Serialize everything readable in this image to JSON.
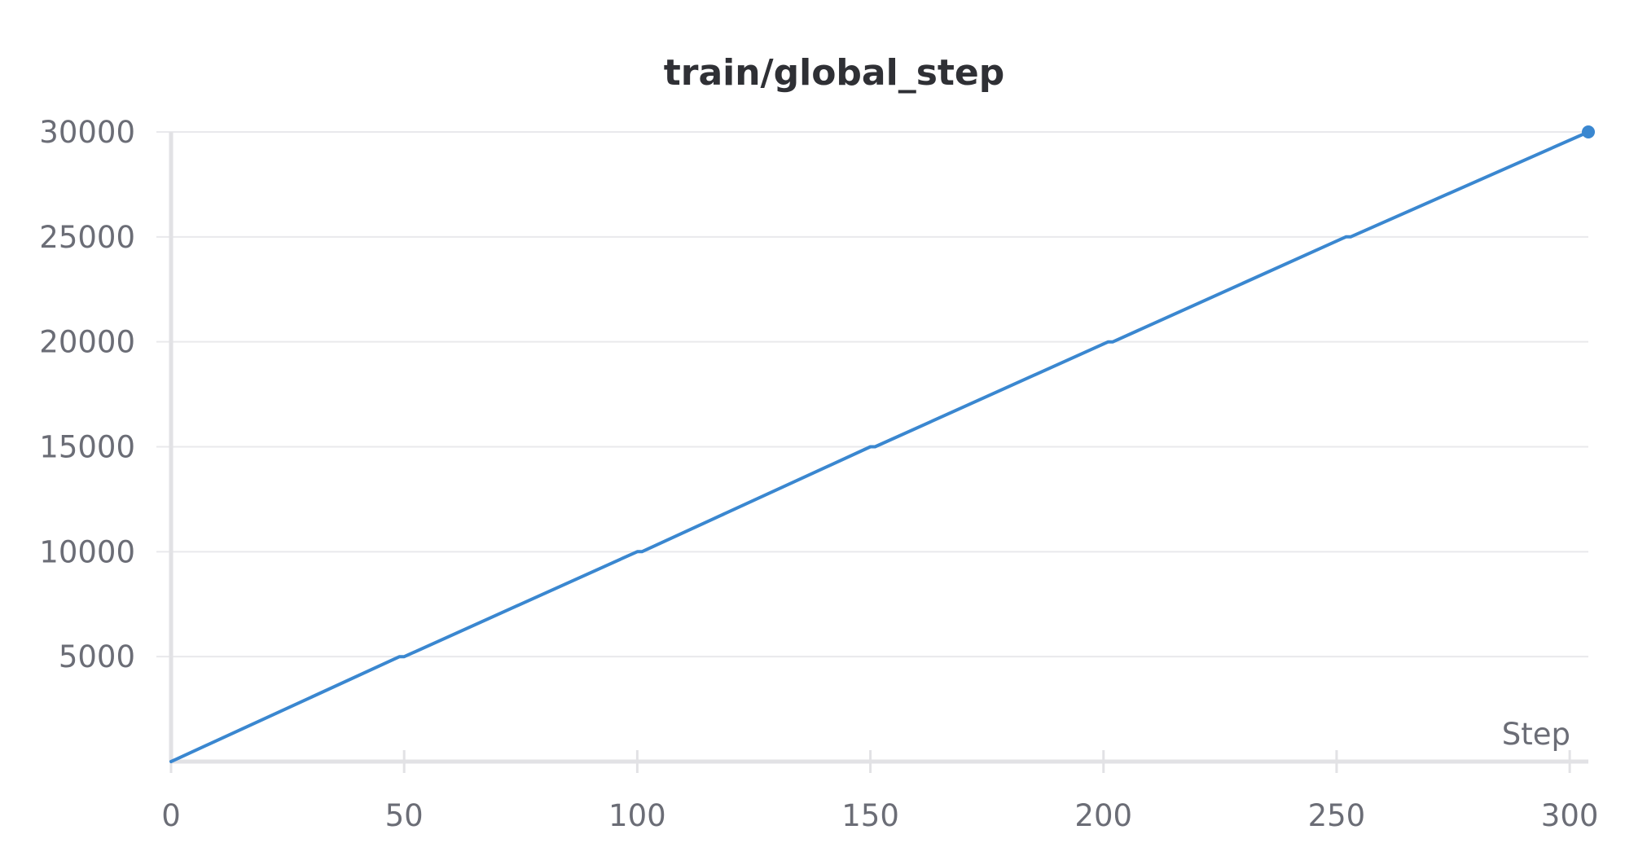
{
  "colors": {
    "line": "#3a87d0",
    "grid": "#e9e9ec",
    "axis": "#e2e2e5",
    "text": "#6b6d76",
    "title": "#2f3035"
  },
  "chart_data": {
    "type": "line",
    "title": "train/global_step",
    "xlabel": "Step",
    "ylabel": "",
    "xlim": [
      0,
      304
    ],
    "ylim": [
      0,
      30000
    ],
    "grid": true,
    "xticks": [
      0,
      50,
      100,
      150,
      200,
      250,
      300
    ],
    "yticks": [
      5000,
      10000,
      15000,
      20000,
      25000,
      30000
    ],
    "xtick_labels": [
      "0",
      "50",
      "100",
      "150",
      "200",
      "250",
      "300"
    ],
    "ytick_labels": [
      "5000",
      "10000",
      "15000",
      "20000",
      "25000",
      "30000"
    ],
    "series": [
      {
        "x": [
          0,
          1,
          49,
          50,
          100,
          101,
          150,
          151,
          201,
          202,
          252,
          253,
          304
        ],
        "y": [
          0,
          100,
          5000,
          5000,
          10000,
          10000,
          15000,
          15000,
          20000,
          20000,
          25000,
          25000,
          30000
        ],
        "end_marker": true
      }
    ]
  }
}
